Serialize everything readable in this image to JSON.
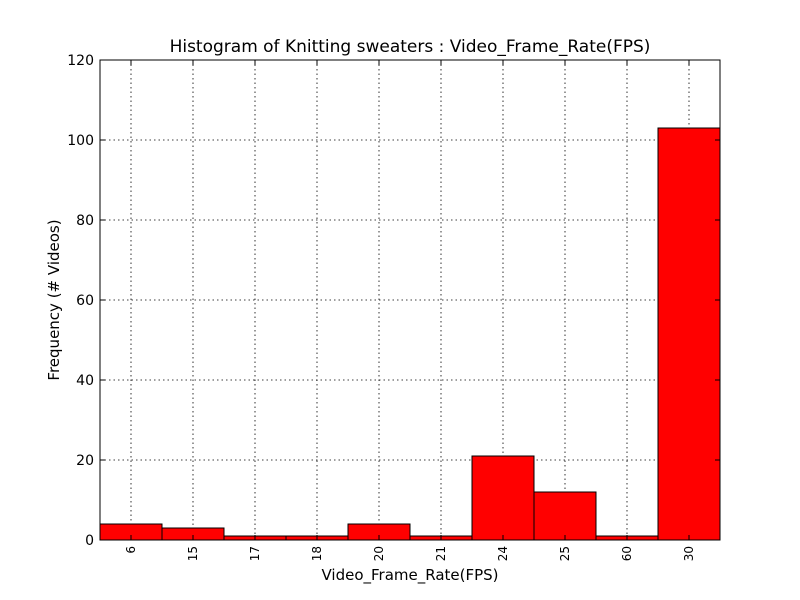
{
  "chart_data": {
    "type": "bar",
    "title": "Histogram of Knitting sweaters : Video_Frame_Rate(FPS)",
    "xlabel": "Video_Frame_Rate(FPS)",
    "ylabel": "Frequency (# Videos)",
    "categories": [
      "6",
      "15",
      "17",
      "18",
      "20",
      "21",
      "24",
      "25",
      "60",
      "30"
    ],
    "values": [
      4,
      3,
      1,
      1,
      4,
      1,
      21,
      12,
      1,
      103
    ],
    "ylim": [
      0,
      120
    ],
    "yticks": [
      0,
      20,
      40,
      60,
      80,
      100,
      120
    ],
    "grid": true,
    "bar_color": "#ff0000",
    "edge_color": "#000000"
  }
}
